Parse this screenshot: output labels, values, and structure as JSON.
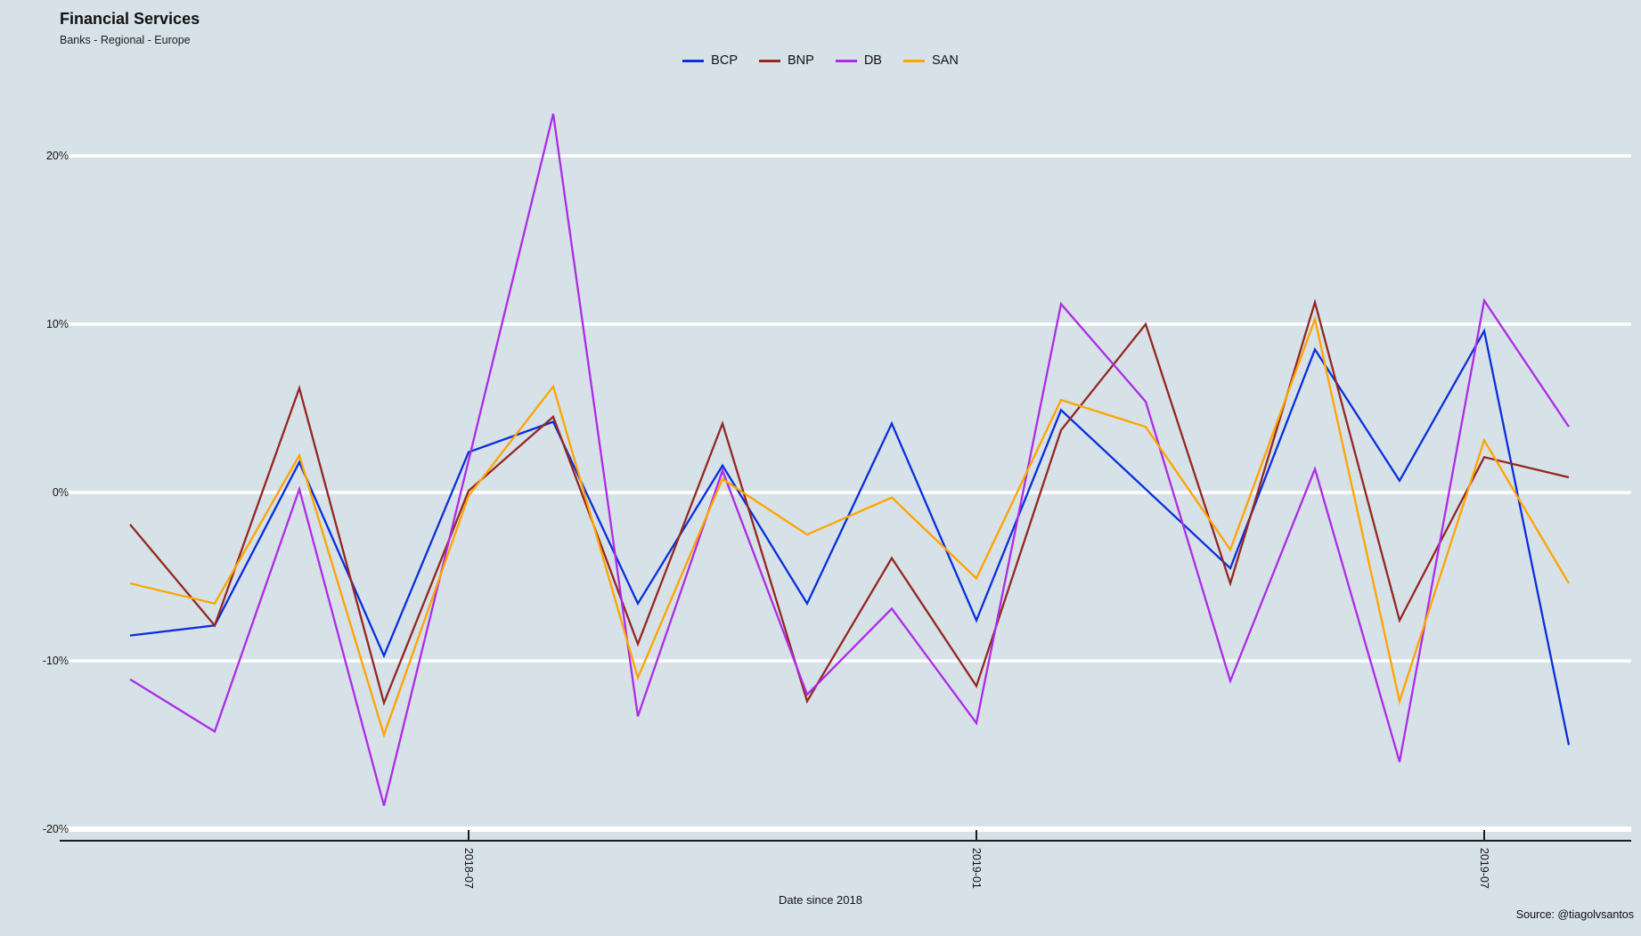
{
  "header": {
    "title": "Financial Services",
    "subtitle": "Banks - Regional - Europe"
  },
  "source_note": "Source: @tiagolvsantos",
  "chart_data": {
    "type": "line",
    "title": "Financial Services",
    "subtitle": "Banks - Regional - Europe",
    "xlabel": "Date since 2018",
    "ylabel": "",
    "unit": "%",
    "x": [
      "2018-03",
      "2018-04",
      "2018-05",
      "2018-06",
      "2018-07",
      "2018-08",
      "2018-09",
      "2018-10",
      "2018-11",
      "2018-12",
      "2019-01",
      "2019-02",
      "2019-03",
      "2019-04",
      "2019-05",
      "2019-06",
      "2019-07",
      "2019-08"
    ],
    "x_tick_labels": [
      "2018-07",
      "2019-01",
      "2019-07"
    ],
    "x_tick_indices": [
      4,
      10,
      16
    ],
    "y_tick_labels": [
      "20%",
      "10%",
      "0%",
      "-10%",
      "-20%"
    ],
    "y_tick_values": [
      20,
      10,
      0,
      -10,
      -20
    ],
    "ylim": [
      -21,
      24
    ],
    "grid": true,
    "grid_color": "#ffffff",
    "background_color": "#d6e1e8",
    "axis_line_color": "#1c1c1c",
    "legend_position": "top-center",
    "series": [
      {
        "name": "BCP",
        "color": "#0a2fdb",
        "values": [
          -8.5,
          -7.9,
          1.8,
          -9.7,
          2.4,
          4.2,
          -6.6,
          1.6,
          -6.6,
          4.1,
          -7.6,
          4.9,
          0.2,
          -4.5,
          8.5,
          0.7,
          9.6,
          -15.0
        ]
      },
      {
        "name": "BNP",
        "color": "#942722",
        "values": [
          -1.9,
          -7.9,
          6.2,
          -12.5,
          0.1,
          4.5,
          -9.0,
          4.1,
          -12.4,
          -3.9,
          -11.5,
          3.7,
          10.0,
          -5.4,
          11.3,
          -7.6,
          2.1,
          0.9
        ]
      },
      {
        "name": "DB",
        "color": "#ad2ce6",
        "values": [
          -11.1,
          -14.2,
          0.2,
          -18.6,
          1.9,
          22.5,
          -13.3,
          1.3,
          -12.0,
          -6.9,
          -13.7,
          11.2,
          5.4,
          -11.2,
          1.4,
          -16.0,
          11.4,
          3.9
        ]
      },
      {
        "name": "SAN",
        "color": "#ffa400",
        "values": [
          -5.4,
          -6.6,
          2.2,
          -14.4,
          -0.2,
          6.3,
          -11.0,
          0.8,
          -2.5,
          -0.3,
          -5.1,
          5.5,
          3.9,
          -3.4,
          10.3,
          -12.4,
          3.1,
          -5.4
        ]
      }
    ]
  }
}
